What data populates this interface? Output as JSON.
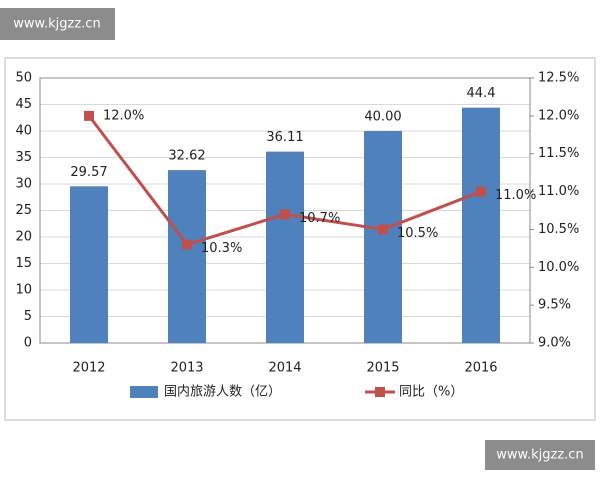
{
  "watermarks": [
    "www.kjgzz.cn",
    "www.kjgzz.cn"
  ],
  "chart_data": {
    "type": "bar",
    "categories": [
      "2012",
      "2013",
      "2014",
      "2015",
      "2016"
    ],
    "series": [
      {
        "name": "国内旅游人数（亿）",
        "color": "#4f81bd",
        "values": [
          29.57,
          32.62,
          36.11,
          40.0,
          44.4
        ],
        "value_labels": [
          "29.57",
          "32.62",
          "36.11",
          "40.00",
          "44.4"
        ]
      },
      {
        "name": "同比（%）",
        "type": "line",
        "axis": "y2",
        "color": "#c0504d",
        "values": [
          12.0,
          10.3,
          10.7,
          10.5,
          11.0
        ],
        "value_labels": [
          "12.0%",
          "10.3%",
          "10.7%",
          "10.5%",
          "11.0%"
        ]
      }
    ],
    "ylim": [
      0,
      50
    ],
    "yticks": [
      0,
      5,
      10,
      15,
      20,
      25,
      30,
      35,
      40,
      45,
      50
    ],
    "y2lim": [
      9,
      12.5
    ],
    "y2ticks": [
      {
        "value": 9,
        "label": "9.0%"
      },
      {
        "value": 9.5,
        "label": "9.5%"
      },
      {
        "value": 10,
        "label": "10.0%"
      },
      {
        "value": 10.5,
        "label": "10.5%"
      },
      {
        "value": 11,
        "label": "11.0%"
      },
      {
        "value": 11.5,
        "label": "11.5%"
      },
      {
        "value": 12,
        "label": "12.0%"
      },
      {
        "value": 12.5,
        "label": "12.5%"
      }
    ],
    "grid": true
  }
}
